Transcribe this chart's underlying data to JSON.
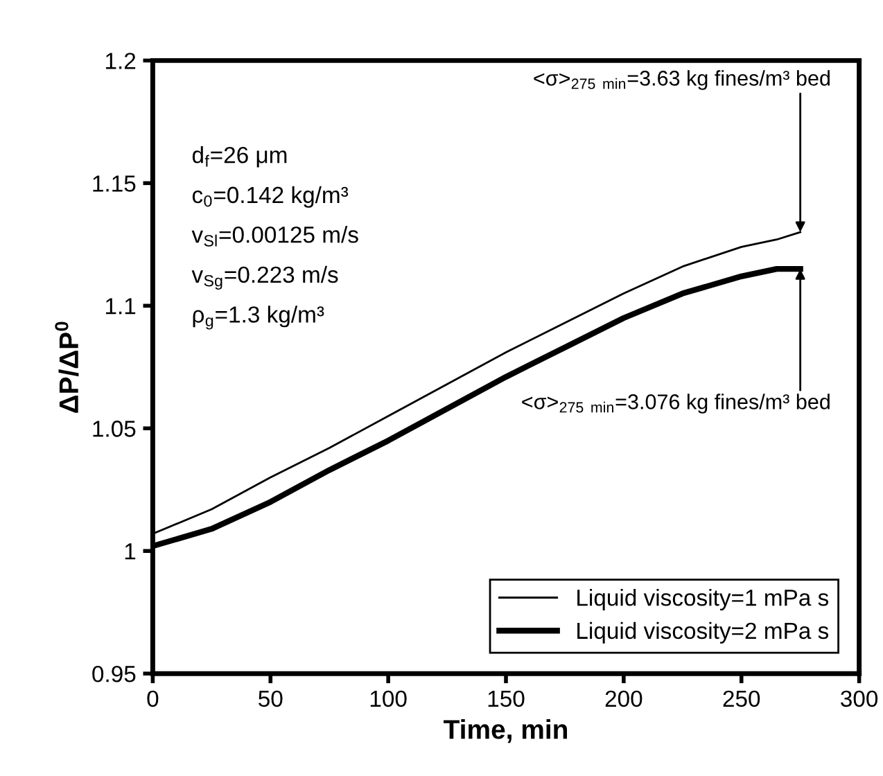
{
  "chart_data": {
    "type": "line",
    "xlabel": "Time, min",
    "ylabel": "ΔP/ΔP$^{0}$",
    "x": [
      0,
      25,
      50,
      75,
      100,
      125,
      150,
      175,
      200,
      225,
      250,
      265,
      275
    ],
    "series": [
      {
        "name": "Liquid viscosity=1 mPa s",
        "color": "#000000",
        "values": [
          1.007,
          1.017,
          1.03,
          1.042,
          1.055,
          1.068,
          1.081,
          1.093,
          1.105,
          1.116,
          1.124,
          1.127,
          1.13
        ]
      },
      {
        "name": "Liquid viscosity=2 mPa s",
        "color": "#000000",
        "values": [
          1.002,
          1.009,
          1.02,
          1.033,
          1.045,
          1.058,
          1.071,
          1.083,
          1.095,
          1.105,
          1.112,
          1.115,
          1.115
        ]
      }
    ],
    "xlim": [
      0,
      300
    ],
    "xticks": [
      0,
      50,
      100,
      150,
      200,
      250,
      300
    ],
    "ylim": [
      0.95,
      1.2
    ],
    "yticks": [
      0.95,
      1,
      1.05,
      1.1,
      1.15,
      1.2
    ],
    "grid": false,
    "legend": "bottom right",
    "marker": "none",
    "line_style": "solid",
    "annotations": [
      "d$_{f}$=26 μm",
      "c$_{0}$=0.142 kg/m³",
      "v$_{Sl}$=0.00125 m/s",
      "v$_{Sg}$=0.223 m/s",
      "ρ$_{g}$=1.3 kg/m³",
      {
        "text": "<σ>$_{275}$ $_{min}$=3.63 kg fines/m³ bed",
        "x": 275,
        "y": 1.13
      },
      {
        "text": "<σ>$_{275}$ $_{min}$=3.076 kg fines/m³ bed",
        "x": 275,
        "y": 1.115
      }
    ]
  }
}
